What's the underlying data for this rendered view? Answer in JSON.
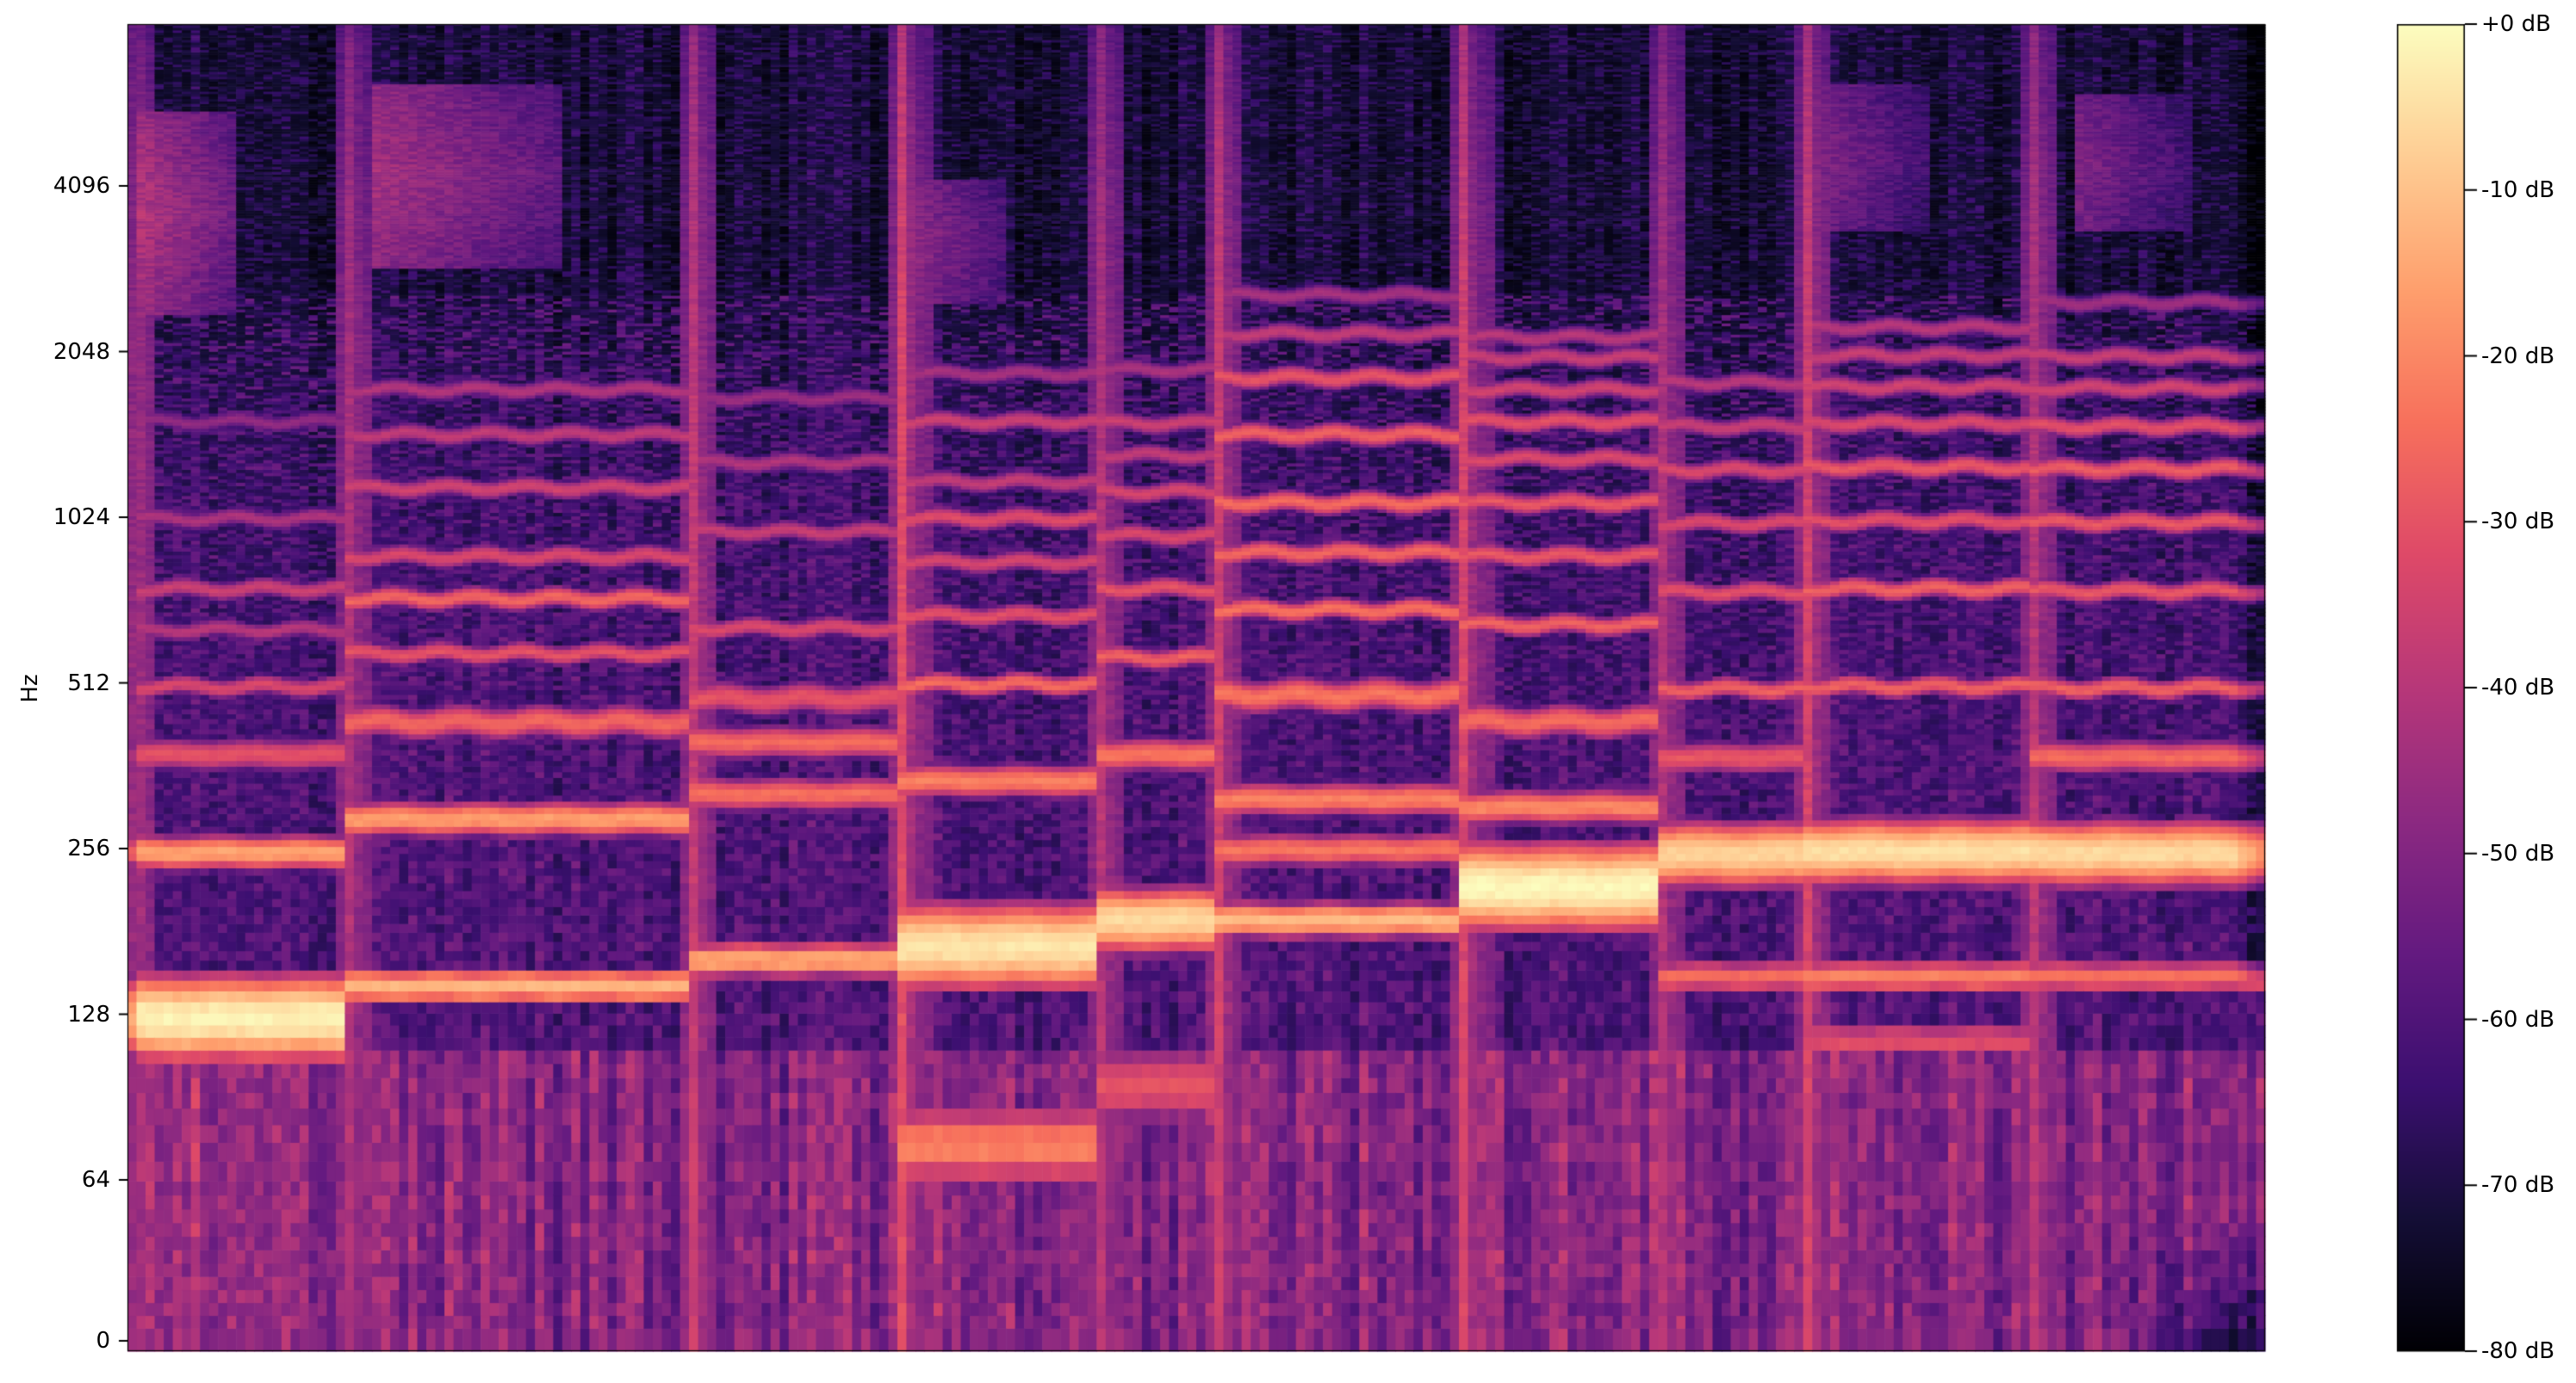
{
  "chart_data": {
    "type": "heatmap",
    "subtype": "audio-spectrogram",
    "title": "",
    "xlabel": "",
    "ylabel": "Hz",
    "description": "Log-frequency power spectrogram of a polyphonic music excerpt: ten sustained chord segments with an ascending bass line (about 126 Hz up to 251 Hz), stacked harmonic overtone rows up to about 2.5 kHz, broadband onset transient columns, sibilant high-frequency patches and a purple low-frequency noise floor. Magma colormap over a -80 dB to +0 dB range.",
    "x_axis": {
      "tick_labels": [],
      "label": ""
    },
    "y_axis": {
      "scale": "log2-with-linear-below-64",
      "tick_labels": [
        "4096",
        "2048",
        "1024",
        "512",
        "256",
        "128",
        "64",
        "0"
      ],
      "tick_freqs_hz": [
        4096,
        2048,
        1024,
        512,
        256,
        128,
        64,
        0
      ],
      "range_hz": [
        0,
        8192
      ]
    },
    "colorbar": {
      "tick_labels": [
        "+0 dB",
        "-10 dB",
        "-20 dB",
        "-30 dB",
        "-40 dB",
        "-50 dB",
        "-60 dB",
        "-70 dB",
        "-80 dB"
      ],
      "vmax_db": 0,
      "vmin_db": -80,
      "colormap": "magma",
      "colormap_stops": [
        [
          0.0,
          0,
          0,
          4
        ],
        [
          0.1,
          20,
          14,
          54
        ],
        [
          0.2,
          59,
          15,
          112
        ],
        [
          0.3,
          100,
          26,
          128
        ],
        [
          0.4,
          140,
          41,
          129
        ],
        [
          0.5,
          183,
          55,
          121
        ],
        [
          0.6,
          222,
          73,
          104
        ],
        [
          0.7,
          247,
          112,
          92
        ],
        [
          0.8,
          254,
          159,
          109
        ],
        [
          0.9,
          254,
          205,
          148
        ],
        [
          1.0,
          252,
          253,
          191
        ]
      ]
    },
    "spectrogram": {
      "time_frames": 236,
      "freq_bins": 295,
      "seed_curve_hz": 525,
      "noise": {
        "low_cut_hz": 108,
        "low_base_db": -55,
        "low_rand_db": 12,
        "high_base_db": -64,
        "high_slope_db": 11,
        "high_rand_db": 11,
        "col_var_db": 14,
        "speckle_prob": 0.22,
        "speckle_base_db": -62,
        "speckle_rand_db": 8
      },
      "segments": [
        {
          "t0": 0.0,
          "t1": 0.102,
          "ph": 0.0,
          "onset": 0.85,
          "low_db": 4,
          "bands": [
            [
              126,
              -2
            ],
            [
              252,
              -15
            ],
            [
              380,
              -30
            ],
            [
              505,
              -33
            ],
            [
              640,
              -40
            ],
            [
              760,
              -36
            ],
            [
              1020,
              -42
            ],
            [
              1530,
              -47
            ]
          ],
          "highs": [
            0.004,
            0.05,
            2400,
            5600,
            -44
          ]
        },
        {
          "t0": 0.102,
          "t1": 0.263,
          "ph": 1.1,
          "onset": 0.5,
          "low_db": 0,
          "bands": [
            [
              144,
              -12
            ],
            [
              290,
              -16
            ],
            [
              435,
              -26
            ],
            [
              580,
              -30
            ],
            [
              730,
              -26
            ],
            [
              870,
              -33
            ],
            [
              1160,
              -35
            ],
            [
              1450,
              -38
            ],
            [
              1750,
              -41
            ]
          ],
          "highs": [
            0.115,
            0.205,
            2900,
            6300,
            -47
          ]
        },
        {
          "t0": 0.263,
          "t1": 0.359,
          "ph": 2.3,
          "onset": 0.7,
          "low_db": 0,
          "bands": [
            [
              161,
              -14
            ],
            [
              322,
              -24
            ],
            [
              400,
              -25
            ],
            [
              480,
              -30
            ],
            [
              645,
              -33
            ],
            [
              965,
              -37
            ],
            [
              1290,
              -41
            ],
            [
              1690,
              -45
            ]
          ]
        },
        {
          "t0": 0.359,
          "t1": 0.453,
          "ph": 0.7,
          "onset": 1.0,
          "low_db": 2,
          "bands": [
            [
              74,
              -21
            ],
            [
              170,
              -4
            ],
            [
              340,
              -21
            ],
            [
              510,
              -25
            ],
            [
              680,
              -31
            ],
            [
              850,
              -34
            ],
            [
              1020,
              -32
            ],
            [
              1190,
              -38
            ],
            [
              1530,
              -36
            ],
            [
              1870,
              -43
            ]
          ],
          "highs": [
            0.362,
            0.41,
            2500,
            4200,
            -50
          ]
        },
        {
          "t0": 0.453,
          "t1": 0.51,
          "ph": 1.9,
          "onset": 0.55,
          "low_db": 0,
          "bands": [
            [
              95,
              -30
            ],
            [
              190,
              -6
            ],
            [
              380,
              -23
            ],
            [
              570,
              -27
            ],
            [
              760,
              -30
            ],
            [
              950,
              -33
            ],
            [
              1140,
              -34
            ],
            [
              1330,
              -38
            ],
            [
              1520,
              -36
            ],
            [
              1900,
              -42
            ]
          ]
        },
        {
          "t0": 0.51,
          "t1": 0.622,
          "ph": 0.3,
          "onset": 0.8,
          "low_db": 0,
          "bands": [
            [
              190,
              -11
            ],
            [
              255,
              -23
            ],
            [
              315,
              -21
            ],
            [
              487,
              -23
            ],
            [
              696,
              -24
            ],
            [
              884,
              -26
            ],
            [
              1090,
              -25
            ],
            [
              1450,
              -27
            ],
            [
              1840,
              -30
            ],
            [
              2210,
              -38
            ],
            [
              2600,
              -43
            ]
          ]
        },
        {
          "t0": 0.622,
          "t1": 0.718,
          "ph": 1.4,
          "onset": 0.9,
          "low_db": 1,
          "bands": [
            [
              218,
              -1
            ],
            [
              305,
              -20
            ],
            [
              436,
              -25
            ],
            [
              654,
              -27
            ],
            [
              872,
              -29
            ],
            [
              1090,
              -29
            ],
            [
              1310,
              -33
            ],
            [
              1530,
              -31
            ],
            [
              1750,
              -35
            ],
            [
              2000,
              -37
            ],
            [
              2180,
              -40
            ]
          ]
        },
        {
          "t0": 0.718,
          "t1": 0.782,
          "ph": 2.8,
          "onset": 0.5,
          "low_db": 0,
          "bands": [
            [
              150,
              -25
            ],
            [
              250,
              -7
            ],
            [
              375,
              -29
            ],
            [
              500,
              -27
            ],
            [
              750,
              -31
            ],
            [
              1000,
              -33
            ],
            [
              1250,
              -33
            ],
            [
              1500,
              -37
            ],
            [
              1800,
              -40
            ]
          ]
        },
        {
          "t0": 0.782,
          "t1": 0.891,
          "ph": 0.9,
          "onset": 0.85,
          "low_db": 0,
          "bands": [
            [
              115,
              -30
            ],
            [
              150,
              -21
            ],
            [
              253,
              -5
            ],
            [
              505,
              -27
            ],
            [
              760,
              -27
            ],
            [
              1010,
              -31
            ],
            [
              1265,
              -29
            ],
            [
              1520,
              -33
            ],
            [
              1770,
              -35
            ],
            [
              2020,
              -37
            ],
            [
              2270,
              -40
            ]
          ],
          "highs": [
            0.787,
            0.845,
            3400,
            6300,
            -53
          ]
        },
        {
          "t0": 0.891,
          "t1": 1.0,
          "ph": 2.0,
          "onset": 0.6,
          "low_db": 0,
          "bands": [
            [
              150,
              -24
            ],
            [
              251,
              -6
            ],
            [
              376,
              -25
            ],
            [
              502,
              -27
            ],
            [
              753,
              -29
            ],
            [
              1004,
              -29
            ],
            [
              1255,
              -28
            ],
            [
              1500,
              -31
            ],
            [
              1760,
              -35
            ],
            [
              2010,
              -37
            ],
            [
              2520,
              -44
            ]
          ],
          "highs": [
            0.912,
            0.968,
            3400,
            6000,
            -54
          ]
        }
      ]
    }
  }
}
